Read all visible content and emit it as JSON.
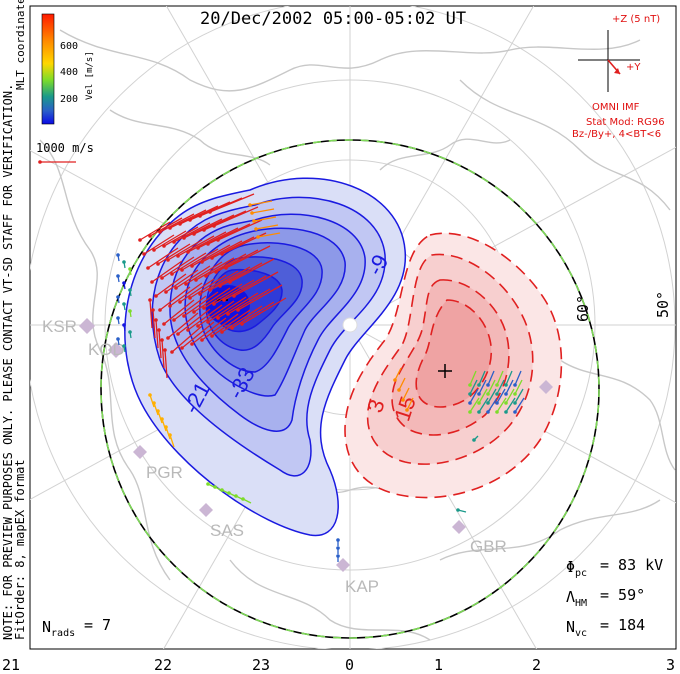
{
  "title": "20/Dec/2002 05:00-05:02 UT",
  "colorbar": {
    "label": "Vel [m/s]",
    "ticks": [
      "600",
      "400",
      "200"
    ],
    "colors": [
      "#ff2a00",
      "#ff7a00",
      "#ffd000",
      "#7ddc2a",
      "#1a9a6a",
      "#2a5fc8",
      "#1414e0"
    ]
  },
  "coordinates_label": "MLT coordinates",
  "scale_vector": "1000 m/s",
  "side_note": {
    "line1": "NOTE: FOR PREVIEW PURPOSES ONLY. PLEASE CONTACT VT-SD STAFF FOR VERIFICATION.",
    "line2": "FitOrder: 8, mapEX format"
  },
  "imf": {
    "z_label": "+Z (5 nT)",
    "y_label": "+Y",
    "source": "OMNI IMF",
    "model": "Stat Mod: RG96",
    "condition": "Bz-/By+, 4<BT<6"
  },
  "stations": [
    "KSR",
    "KOD",
    "PGR",
    "SAS",
    "KAP",
    "GBR"
  ],
  "latitude_labels": [
    "60°",
    "50°"
  ],
  "contours": {
    "negative": [
      "-9",
      "-21",
      "-33"
    ],
    "positive": [
      "3",
      "15"
    ]
  },
  "stats": {
    "phi_pc_label": "Φpc",
    "phi_pc_value": "= 83 kV",
    "lambda_hm_label": "ΛHM",
    "lambda_hm_value": "= 59°",
    "n_vc_label": "Nvc",
    "n_vc_value": "= 184",
    "n_rads_label": "Nrads",
    "n_rads_value": "= 7"
  },
  "mlt_axis": [
    "21",
    "22",
    "23",
    "0",
    "1",
    "2",
    "3"
  ],
  "colors": {
    "negative_cell": "#1a1ad0",
    "positive_cell": "#e02020",
    "boundary_green": "#7ed957",
    "map_gray": "#c8c8c8"
  }
}
